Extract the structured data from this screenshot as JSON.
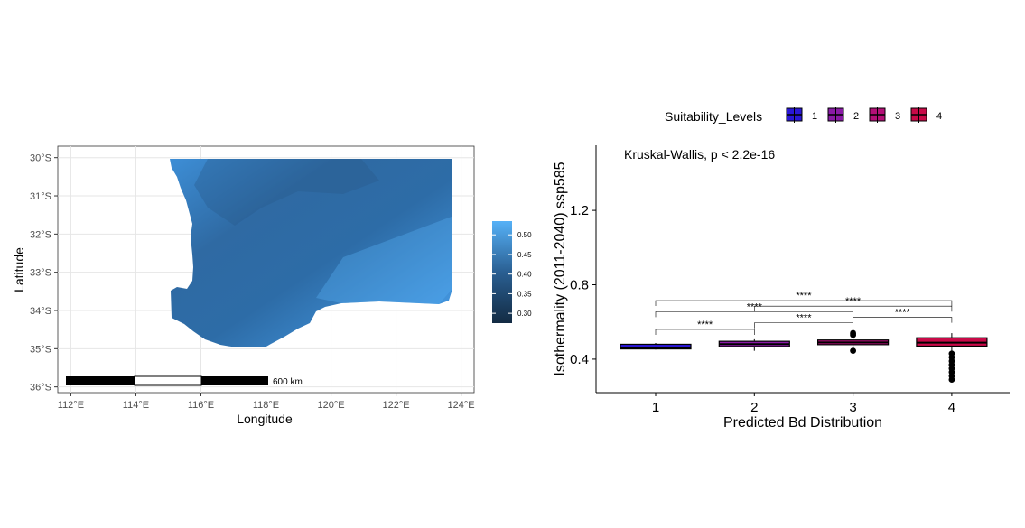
{
  "colors": {
    "land_light": "#4aa3f0",
    "land_dark": "#2a5f92",
    "level_1": "#2a17d6",
    "level_2": "#8a1aa6",
    "level_3": "#b40f77",
    "level_4": "#c80a48",
    "grid": "#e6e6e6"
  },
  "chart_data": [
    {
      "type": "heatmap",
      "title": "",
      "xlabel": "Longitude",
      "ylabel": "Latitude",
      "x_ticks": [
        112,
        114,
        116,
        118,
        120,
        122,
        124
      ],
      "x_tick_labels": [
        "112°E",
        "114°E",
        "116°E",
        "118°E",
        "120°E",
        "122°E",
        "124°E"
      ],
      "y_ticks": [
        -30,
        -31,
        -32,
        -33,
        -34,
        -35,
        -36
      ],
      "y_tick_labels": [
        "30°S",
        "31°S",
        "32°S",
        "33°S",
        "34°S",
        "35°S",
        "36°S"
      ],
      "xlim": [
        111.6,
        124.4
      ],
      "ylim": [
        -36.15,
        -29.7
      ],
      "colorbar": {
        "ticks": [
          0.3,
          0.35,
          0.4,
          0.45,
          0.5
        ],
        "tick_labels": [
          "0.30",
          "0.35",
          "0.40",
          "0.45",
          "0.50"
        ],
        "range": [
          0.275,
          0.535
        ]
      },
      "scalebar": {
        "label": "600 km",
        "start_lon": 111.65,
        "end_lon": 118.1,
        "lat": -35.95
      }
    },
    {
      "type": "box",
      "xlabel": "Predicted Bd Distribution",
      "ylabel": "Isothermality (2011-2040) ssp585",
      "categories": [
        "1",
        "2",
        "3",
        "4"
      ],
      "ylim": [
        0.22,
        1.55
      ],
      "y_ticks": [
        0.4,
        0.8,
        1.2
      ],
      "y_tick_labels": [
        "0.4",
        "0.8",
        "1.2"
      ],
      "annotation": "Kruskal-Wallis, p < 2.2e-16",
      "legend_title": "Suitability_Levels",
      "legend_labels": [
        "1",
        "2",
        "3",
        "4"
      ],
      "boxes": [
        {
          "level": "1",
          "whisker_low": 0.452,
          "q1": 0.455,
          "median": 0.461,
          "q3": 0.48,
          "whisker_high": 0.487,
          "outliers": []
        },
        {
          "level": "2",
          "whisker_low": 0.445,
          "q1": 0.468,
          "median": 0.481,
          "q3": 0.496,
          "whisker_high": 0.507,
          "outliers": []
        },
        {
          "level": "3",
          "whisker_low": 0.447,
          "q1": 0.478,
          "median": 0.49,
          "q3": 0.503,
          "whisker_high": 0.528,
          "outliers": [
            0.445,
            0.54,
            0.53
          ]
        },
        {
          "level": "4",
          "whisker_low": 0.435,
          "q1": 0.47,
          "median": 0.489,
          "q3": 0.515,
          "whisker_high": 0.54,
          "outliers": [
            0.43,
            0.41,
            0.39,
            0.37,
            0.35,
            0.33,
            0.31,
            0.29
          ]
        }
      ],
      "comparisons": [
        {
          "from": "1",
          "to": "2",
          "label": "****",
          "y": 0.56
        },
        {
          "from": "2",
          "to": "3",
          "label": "****",
          "y": 0.595
        },
        {
          "from": "3",
          "to": "4",
          "label": "****",
          "y": 0.625
        },
        {
          "from": "1",
          "to": "3",
          "label": "****",
          "y": 0.655
        },
        {
          "from": "2",
          "to": "4",
          "label": "****",
          "y": 0.685
        },
        {
          "from": "1",
          "to": "4",
          "label": "****",
          "y": 0.715
        }
      ]
    }
  ]
}
